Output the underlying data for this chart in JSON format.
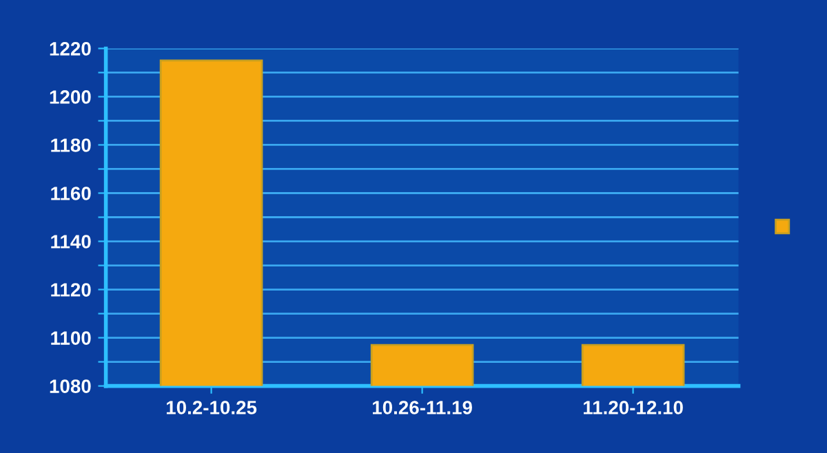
{
  "chart_data": {
    "type": "bar",
    "categories": [
      "10.2-10.25",
      "10.26-11.19",
      "11.20-12.10"
    ],
    "series": [
      {
        "color": "#f5a90f",
        "values": [
          1215,
          1097,
          1097
        ]
      }
    ],
    "ylim": [
      1080,
      1220
    ],
    "yticks": [
      1080,
      {
        "value": 1090,
        "label": null
      },
      1100,
      {
        "value": 1110,
        "label": null
      },
      1120,
      {
        "value": 1130,
        "label": null
      },
      1140,
      {
        "value": 1150,
        "label": null
      },
      1160,
      {
        "value": 1170,
        "label": null
      },
      1180,
      {
        "value": 1190,
        "label": null
      },
      1200,
      {
        "value": 1210,
        "label": null
      },
      1220
    ],
    "grid": "y"
  }
}
